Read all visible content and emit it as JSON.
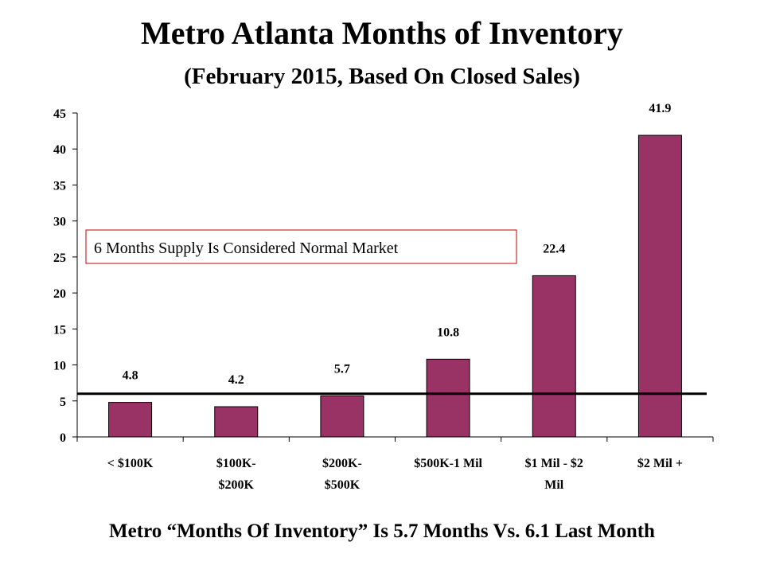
{
  "title": "Metro Atlanta Months of Inventory",
  "subtitle": "(February 2015, Based On Closed Sales)",
  "footer": "Metro “Months Of Inventory” Is 5.7 Months Vs. 6.1 Last Month",
  "colors": {
    "bar": "#993366",
    "bar_outline": "#000000",
    "reference_line": "#000000",
    "annotation_border": "#c00000"
  },
  "chart_data": {
    "type": "bar",
    "categories": [
      [
        "< $100K"
      ],
      [
        "$100K-",
        "$200K"
      ],
      [
        "$200K-",
        "$500K"
      ],
      [
        "$500K-1 Mil"
      ],
      [
        "$1 Mil - $2",
        "Mil"
      ],
      [
        "$2 Mil +"
      ]
    ],
    "values": [
      4.8,
      4.2,
      5.7,
      10.8,
      22.4,
      41.9
    ],
    "data_labels": [
      "4.8",
      "4.2",
      "5.7",
      "10.8",
      "22.4",
      "41.9"
    ],
    "ylim": [
      0,
      45
    ],
    "yticks": [
      0,
      5,
      10,
      15,
      20,
      25,
      30,
      35,
      40,
      45
    ],
    "grid": false,
    "legend": "none",
    "reference_line": {
      "y": 6
    },
    "annotation": "6 Months Supply Is Considered Normal Market"
  }
}
